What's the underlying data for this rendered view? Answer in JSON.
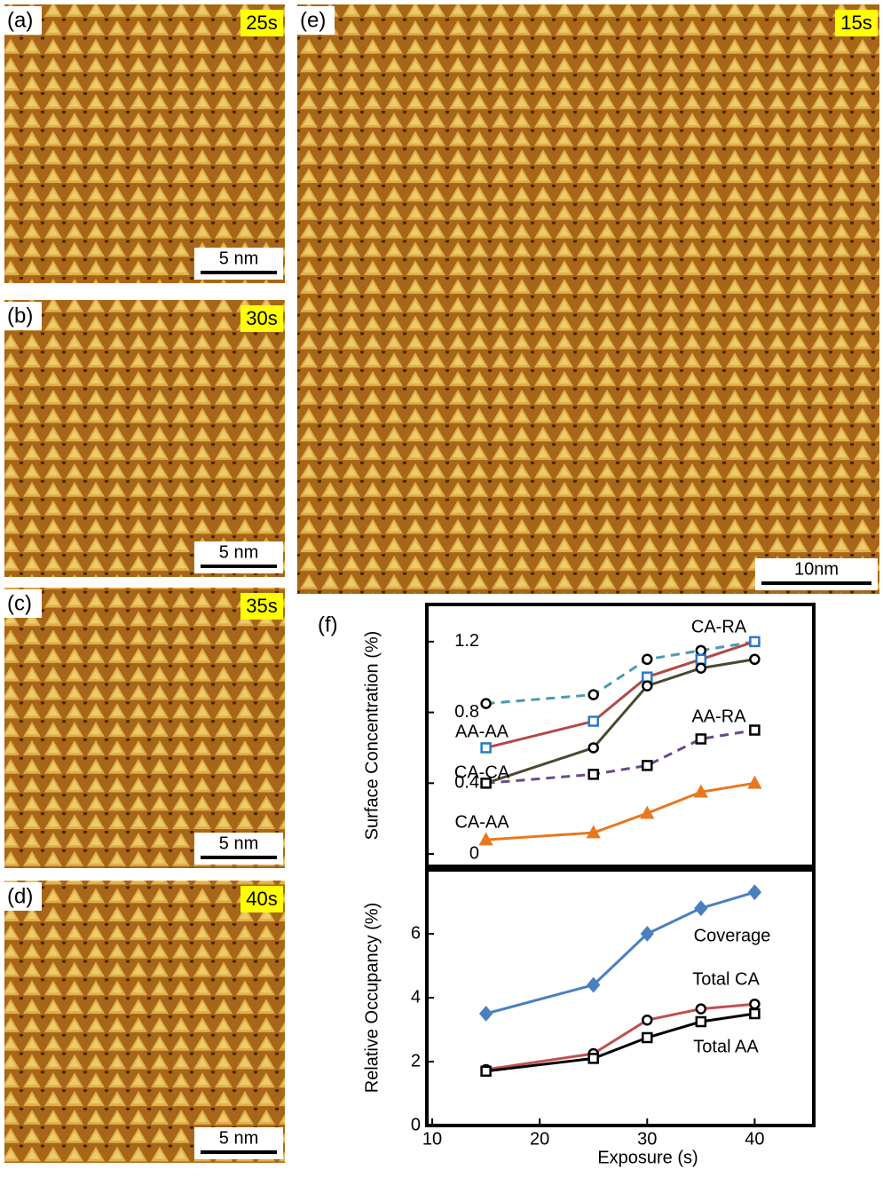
{
  "panels": [
    {
      "label": "(a)",
      "time": "25s",
      "scale": "5 nm"
    },
    {
      "label": "(b)",
      "time": "30s",
      "scale": "5 nm"
    },
    {
      "label": "(c)",
      "time": "35s",
      "scale": "5 nm"
    },
    {
      "label": "(d)",
      "time": "40s",
      "scale": "5 nm"
    },
    {
      "label": "(e)",
      "time": "15s",
      "scale": "10nm"
    }
  ],
  "chart_label": "(f)",
  "chart_data": [
    {
      "type": "line",
      "y_label": "Surface Concentration (%)",
      "x": [
        15,
        25,
        30,
        35,
        40
      ],
      "xlim": [
        9.5,
        45.5
      ],
      "ylim": [
        -0.07,
        1.41
      ],
      "yticks": [
        0,
        0.4,
        0.8,
        1.2
      ],
      "series": [
        {
          "name": "CA-RA",
          "color": "#4a9ab0",
          "dashed": true,
          "marker": "circle",
          "marker_color": "#000000",
          "values": [
            0.85,
            0.9,
            1.1,
            1.15,
            1.2
          ]
        },
        {
          "name": "AA-AA",
          "color": "#b04848",
          "dashed": false,
          "marker": "square",
          "marker_color": "#2a7ac8",
          "values": [
            0.6,
            0.75,
            1.0,
            1.1,
            1.2
          ]
        },
        {
          "name": "CA-CA",
          "color": "#4a4830",
          "dashed": false,
          "marker": "circle",
          "marker_color": "#000000",
          "values": [
            0.4,
            0.6,
            0.95,
            1.05,
            1.1
          ]
        },
        {
          "name": "AA-RA",
          "color": "#6a4a8a",
          "dashed": true,
          "marker": "square",
          "marker_color": "#000000",
          "values": [
            0.4,
            0.45,
            0.5,
            0.65,
            0.7
          ]
        },
        {
          "name": "CA-AA",
          "color": "#e87820",
          "dashed": false,
          "marker": "triangle",
          "marker_color": "#e87820",
          "values": [
            0.08,
            0.12,
            0.23,
            0.35,
            0.4
          ]
        }
      ]
    },
    {
      "type": "line",
      "y_label": "Relative Occupancy (%)",
      "x_label": "Exposure (s)",
      "x": [
        15,
        25,
        30,
        35,
        40
      ],
      "xlim": [
        9.5,
        45.5
      ],
      "xticks": [
        10,
        20,
        30,
        40
      ],
      "ylim": [
        0,
        8
      ],
      "yticks": [
        0,
        2,
        4,
        6
      ],
      "series": [
        {
          "name": "Coverage",
          "color": "#4a80c0",
          "dashed": false,
          "marker": "diamond",
          "marker_color": "#4a80c0",
          "values": [
            3.5,
            4.4,
            6.0,
            6.8,
            7.3
          ]
        },
        {
          "name": "Total CA",
          "color": "#c05050",
          "dashed": false,
          "marker": "circle",
          "marker_color": "#000000",
          "values": [
            1.75,
            2.25,
            3.3,
            3.65,
            3.8
          ]
        },
        {
          "name": "Total AA",
          "color": "#000000",
          "dashed": false,
          "marker": "square",
          "marker_color": "#000000",
          "values": [
            1.7,
            2.1,
            2.75,
            3.25,
            3.5
          ]
        }
      ]
    }
  ]
}
